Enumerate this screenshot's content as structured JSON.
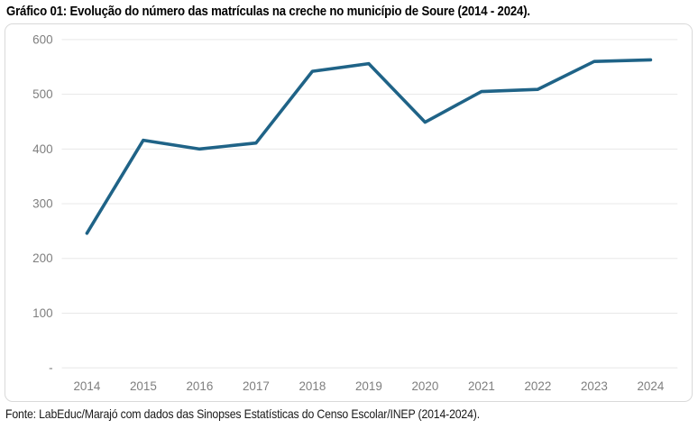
{
  "header": {
    "title": "Gráfico 01: Evolução do número das matrículas na creche no município de Soure (2014 - 2024)."
  },
  "footer": {
    "source": "Fonte: LabEduc/Marajó com dados das Sinopses Estatísticas do Censo Escolar/INEP (2014-2024)."
  },
  "colors": {
    "line": "#1F6387",
    "gridline": "#E8E8E8",
    "axis_label": "#7F7F7F",
    "frame_border": "#D9D9D9",
    "title_text": "#000000"
  },
  "chart_data": {
    "type": "line",
    "title": "Gráfico 01: Evolução do número das matrículas na creche no município de Soure (2014 - 2024).",
    "categories": [
      "2014",
      "2015",
      "2016",
      "2017",
      "2018",
      "2019",
      "2020",
      "2021",
      "2022",
      "2023",
      "2024"
    ],
    "values": [
      246,
      416,
      400,
      411,
      542,
      556,
      449,
      505,
      509,
      560,
      563
    ],
    "xlabel": "",
    "ylabel": "",
    "ylim": [
      0,
      600
    ],
    "y_ticks": [
      {
        "value": 600,
        "label": "600"
      },
      {
        "value": 500,
        "label": "500"
      },
      {
        "value": 400,
        "label": "400"
      },
      {
        "value": 300,
        "label": "300"
      },
      {
        "value": 200,
        "label": "200"
      },
      {
        "value": 100,
        "label": "100"
      },
      {
        "value": 0,
        "label": "-"
      }
    ],
    "grid": true,
    "legend_position": "none",
    "line_color": "#1F6387"
  }
}
